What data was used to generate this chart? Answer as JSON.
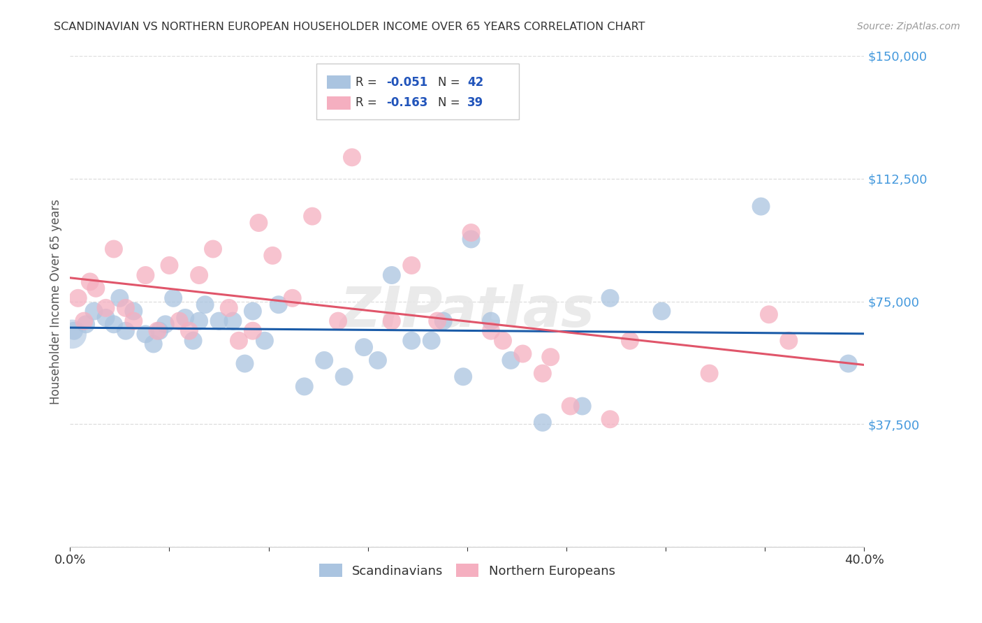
{
  "title": "SCANDINAVIAN VS NORTHERN EUROPEAN HOUSEHOLDER INCOME OVER 65 YEARS CORRELATION CHART",
  "source": "Source: ZipAtlas.com",
  "ylabel": "Householder Income Over 65 years",
  "xlim": [
    0.0,
    0.4
  ],
  "ylim": [
    0,
    150000
  ],
  "yticks": [
    0,
    37500,
    75000,
    112500,
    150000
  ],
  "ytick_labels": [
    "",
    "$37,500",
    "$75,000",
    "$112,500",
    "$150,000"
  ],
  "xticks": [
    0.0,
    0.05,
    0.1,
    0.15,
    0.2,
    0.25,
    0.3,
    0.35,
    0.4
  ],
  "legend_label1": "Scandinavians",
  "legend_label2": "Northern Europeans",
  "scand_color": "#aac4e0",
  "nord_color": "#f5afc0",
  "scand_line_color": "#1a5ba8",
  "nord_line_color": "#e0556a",
  "tick_color": "#4499dd",
  "watermark": "ZIPatlas",
  "scandinavians_x": [
    0.002,
    0.008,
    0.012,
    0.018,
    0.022,
    0.025,
    0.028,
    0.032,
    0.038,
    0.042,
    0.045,
    0.048,
    0.052,
    0.058,
    0.062,
    0.065,
    0.068,
    0.075,
    0.082,
    0.088,
    0.092,
    0.098,
    0.105,
    0.118,
    0.128,
    0.138,
    0.148,
    0.155,
    0.162,
    0.172,
    0.182,
    0.188,
    0.198,
    0.202,
    0.212,
    0.222,
    0.238,
    0.258,
    0.272,
    0.298,
    0.348,
    0.392
  ],
  "scandinavians_y": [
    66000,
    68000,
    72000,
    70000,
    68000,
    76000,
    66000,
    72000,
    65000,
    62000,
    66000,
    68000,
    76000,
    70000,
    63000,
    69000,
    74000,
    69000,
    69000,
    56000,
    72000,
    63000,
    74000,
    49000,
    57000,
    52000,
    61000,
    57000,
    83000,
    63000,
    63000,
    69000,
    52000,
    94000,
    69000,
    57000,
    38000,
    43000,
    76000,
    72000,
    104000,
    56000
  ],
  "northern_europeans_x": [
    0.004,
    0.007,
    0.01,
    0.013,
    0.018,
    0.022,
    0.028,
    0.032,
    0.038,
    0.044,
    0.05,
    0.055,
    0.06,
    0.065,
    0.072,
    0.08,
    0.085,
    0.092,
    0.095,
    0.102,
    0.112,
    0.122,
    0.135,
    0.142,
    0.162,
    0.172,
    0.185,
    0.202,
    0.212,
    0.218,
    0.228,
    0.238,
    0.242,
    0.252,
    0.272,
    0.282,
    0.322,
    0.352,
    0.362
  ],
  "northern_europeans_y": [
    76000,
    69000,
    81000,
    79000,
    73000,
    91000,
    73000,
    69000,
    83000,
    66000,
    86000,
    69000,
    66000,
    83000,
    91000,
    73000,
    63000,
    66000,
    99000,
    89000,
    76000,
    101000,
    69000,
    119000,
    69000,
    86000,
    69000,
    96000,
    66000,
    63000,
    59000,
    53000,
    58000,
    43000,
    39000,
    63000,
    53000,
    71000,
    63000
  ]
}
